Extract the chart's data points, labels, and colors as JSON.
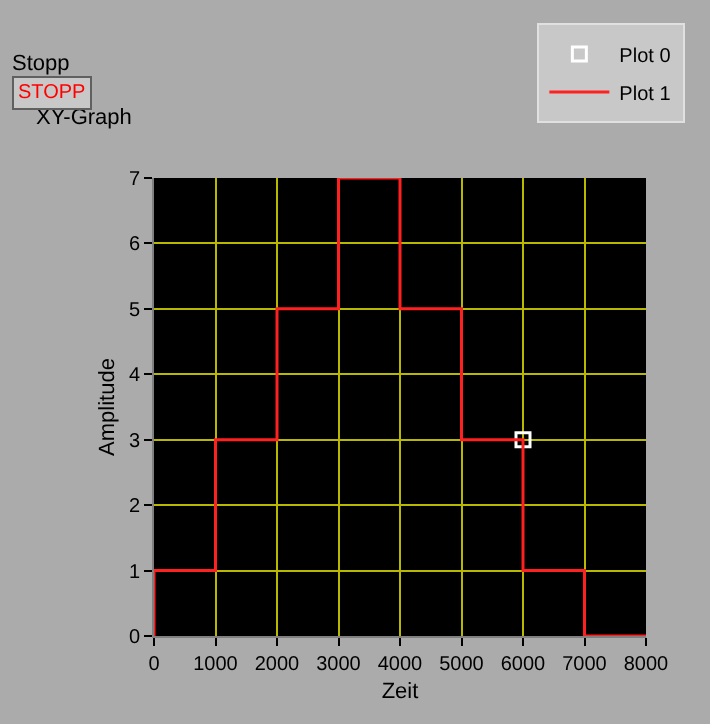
{
  "chart_data": {
    "type": "step",
    "title": "XY-Graph",
    "xlabel": "Zeit",
    "ylabel": "Amplitude",
    "annotations": [
      "Stopp",
      "STOPP"
    ],
    "series": [
      {
        "name": "Plot 0",
        "type": "scatter",
        "marker": "square",
        "color": "#ffffff",
        "x": [
          6000
        ],
        "values": [
          3
        ]
      },
      {
        "name": "Plot 1",
        "color": "#ff2020",
        "x": [
          0,
          0,
          1000,
          2000,
          3000,
          4000,
          5000,
          6000,
          7000,
          8000
        ],
        "values": [
          0,
          1,
          3,
          5,
          7,
          5,
          3,
          1,
          0,
          0
        ]
      }
    ],
    "xlim": [
      0,
      8000
    ],
    "xticks": [
      0,
      1000,
      2000,
      3000,
      4000,
      5000,
      6000,
      7000,
      8000
    ],
    "ylim": [
      0,
      7
    ],
    "yticks": [
      0,
      1,
      2,
      3,
      4,
      5,
      6,
      7
    ],
    "grid": true,
    "legend": "top right"
  }
}
